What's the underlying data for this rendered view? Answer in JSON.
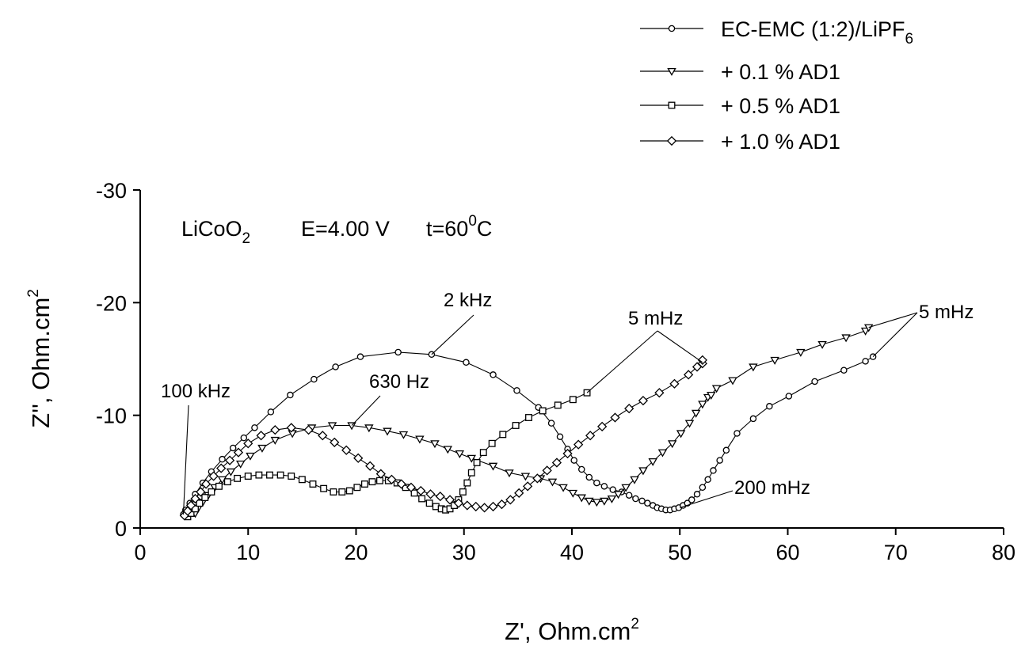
{
  "chart_data": {
    "type": "scatter",
    "title": "",
    "xlabel": {
      "main": "Z', Ohm.cm",
      "sup": "2"
    },
    "ylabel": {
      "main": "Z'', Ohm.cm",
      "sup": "2"
    },
    "xlim": [
      0,
      80
    ],
    "ylim": [
      0,
      -30
    ],
    "x_ticks": [
      "0",
      "10",
      "20",
      "30",
      "40",
      "50",
      "60",
      "70",
      "80"
    ],
    "y_ticks": [
      "0",
      "-10",
      "-20",
      "-30"
    ],
    "grid": false,
    "legend_position": "top-right",
    "conditions": {
      "a": "LiCoO",
      "a_sub": "2",
      "b": "E=4.00 V",
      "c": "t=60",
      "c_sup": "0",
      "c_end": "C"
    },
    "series": [
      {
        "name": "EC-EMC (1:2)/LiPF",
        "name_sub": "6",
        "marker": "circle",
        "x": [
          4.0,
          4.2,
          4.6,
          5.1,
          5.8,
          6.6,
          7.6,
          8.6,
          9.6,
          10.6,
          12.1,
          13.9,
          16.1,
          18.1,
          20.4,
          23.9,
          27.0,
          30.2,
          32.7,
          34.9,
          36.9,
          38.1,
          38.9,
          39.6,
          40.2,
          40.9,
          41.6,
          42.3,
          43.0,
          43.8,
          44.6,
          45.3,
          45.9,
          46.5,
          47.0,
          47.5,
          47.9,
          48.3,
          48.7,
          49.1,
          49.5,
          49.9,
          50.3,
          50.7,
          51.1,
          51.6,
          52.1,
          52.6,
          53.1,
          53.7,
          54.3,
          55.3,
          56.8,
          58.3,
          60.1,
          62.5,
          65.2,
          67.2,
          67.9
        ],
        "y": [
          -1.2,
          -1.6,
          -2.2,
          -3.0,
          -4.0,
          -5.0,
          -6.1,
          -7.1,
          -8.0,
          -8.9,
          -10.3,
          -11.8,
          -13.2,
          -14.3,
          -15.2,
          -15.6,
          -15.4,
          -14.7,
          -13.6,
          -12.2,
          -10.7,
          -9.3,
          -8.1,
          -7.0,
          -6.0,
          -5.2,
          -4.5,
          -4.0,
          -3.7,
          -3.4,
          -3.2,
          -2.9,
          -2.6,
          -2.4,
          -2.2,
          -2.0,
          -1.8,
          -1.7,
          -1.6,
          -1.6,
          -1.7,
          -1.8,
          -2.0,
          -2.2,
          -2.5,
          -3.0,
          -3.6,
          -4.3,
          -5.1,
          -6.0,
          -6.9,
          -8.4,
          -9.7,
          -10.8,
          -11.7,
          -13.0,
          -14.0,
          -14.8,
          -15.2
        ]
      },
      {
        "name": "+ 0.1 % AD1",
        "marker": "triangle-down",
        "x": [
          5.1,
          5.4,
          5.8,
          6.3,
          6.9,
          7.6,
          8.4,
          9.3,
          10.2,
          11.3,
          12.5,
          14.1,
          15.9,
          17.8,
          19.6,
          21.2,
          22.9,
          24.4,
          25.9,
          27.3,
          28.5,
          29.6,
          30.7,
          32.7,
          34.2,
          35.7,
          37.1,
          38.2,
          39.2,
          40.1,
          40.9,
          41.6,
          42.3,
          43.0,
          43.7,
          44.3,
          45.0,
          45.8,
          46.6,
          47.5,
          48.4,
          49.3,
          50.1,
          50.9,
          51.5,
          52.1,
          52.6,
          52.9,
          53.4,
          54.9,
          56.8,
          58.8,
          61.2,
          63.2,
          65.4,
          67.2,
          67.5
        ],
        "y": [
          -1.3,
          -1.8,
          -2.3,
          -2.9,
          -3.6,
          -4.3,
          -5.0,
          -5.7,
          -6.4,
          -7.1,
          -7.8,
          -8.4,
          -8.9,
          -9.1,
          -9.1,
          -8.9,
          -8.6,
          -8.3,
          -7.9,
          -7.5,
          -7.0,
          -6.6,
          -6.2,
          -5.5,
          -4.9,
          -4.6,
          -4.4,
          -4.1,
          -3.6,
          -3.1,
          -2.7,
          -2.4,
          -2.3,
          -2.4,
          -2.6,
          -3.0,
          -3.6,
          -4.3,
          -5.1,
          -5.9,
          -6.7,
          -7.5,
          -8.4,
          -9.3,
          -10.2,
          -11.0,
          -11.6,
          -11.8,
          -12.4,
          -13.1,
          -14.3,
          -14.9,
          -15.6,
          -16.3,
          -16.9,
          -17.5,
          -17.8
        ]
      },
      {
        "name": "+ 0.5 % AD1",
        "marker": "square",
        "x": [
          4.4,
          4.7,
          5.1,
          5.5,
          6.0,
          6.6,
          7.3,
          8.1,
          9.0,
          10.0,
          11.0,
          12.0,
          13.0,
          14.0,
          15.0,
          16.0,
          17.0,
          17.9,
          18.7,
          19.4,
          20.1,
          20.8,
          21.5,
          22.2,
          23.0,
          23.8,
          24.6,
          25.4,
          26.1,
          26.8,
          27.4,
          27.9,
          28.3,
          28.7,
          29.1,
          29.5,
          29.9,
          30.3,
          30.7,
          31.2,
          31.8,
          32.6,
          33.6,
          34.8,
          36.0,
          37.3,
          38.7,
          40.1,
          41.4
        ],
        "y": [
          -1.0,
          -1.3,
          -1.7,
          -2.2,
          -2.7,
          -3.2,
          -3.7,
          -4.1,
          -4.4,
          -4.6,
          -4.7,
          -4.7,
          -4.7,
          -4.6,
          -4.3,
          -3.9,
          -3.5,
          -3.2,
          -3.2,
          -3.3,
          -3.6,
          -3.9,
          -4.1,
          -4.2,
          -4.2,
          -4.0,
          -3.6,
          -3.1,
          -2.6,
          -2.2,
          -1.9,
          -1.7,
          -1.6,
          -1.7,
          -2.0,
          -2.5,
          -3.2,
          -4.0,
          -4.9,
          -5.8,
          -6.7,
          -7.5,
          -8.3,
          -9.1,
          -9.8,
          -10.4,
          -10.9,
          -11.4,
          -12.0
        ]
      },
      {
        "name": "+ 1.0 % AD1",
        "marker": "diamond",
        "x": [
          4.1,
          4.4,
          4.7,
          5.1,
          5.6,
          6.1,
          6.8,
          7.5,
          8.3,
          9.1,
          10.0,
          11.2,
          12.5,
          14.0,
          15.6,
          16.9,
          18.0,
          19.1,
          20.2,
          21.3,
          22.3,
          23.3,
          24.2,
          25.1,
          26.0,
          26.9,
          27.8,
          28.7,
          29.5,
          30.3,
          31.1,
          31.9,
          32.7,
          33.5,
          34.3,
          35.1,
          35.9,
          36.8,
          37.7,
          38.6,
          39.6,
          40.6,
          41.7,
          42.8,
          44.0,
          45.3,
          46.6,
          48.1,
          49.5,
          50.8,
          51.6,
          52.1,
          52.1
        ],
        "y": [
          -1.1,
          -1.5,
          -2.0,
          -2.6,
          -3.2,
          -3.9,
          -4.6,
          -5.3,
          -6.0,
          -6.7,
          -7.5,
          -8.2,
          -8.7,
          -8.9,
          -8.7,
          -8.2,
          -7.6,
          -6.9,
          -6.2,
          -5.5,
          -4.8,
          -4.3,
          -3.9,
          -3.6,
          -3.3,
          -3.0,
          -2.8,
          -2.5,
          -2.2,
          -2.0,
          -1.9,
          -1.8,
          -1.9,
          -2.1,
          -2.5,
          -3.1,
          -3.7,
          -4.4,
          -5.1,
          -5.8,
          -6.6,
          -7.4,
          -8.2,
          -9.0,
          -9.8,
          -10.6,
          -11.3,
          -12.0,
          -12.8,
          -13.6,
          -14.3,
          -14.6,
          -14.9
        ]
      }
    ],
    "annotations": [
      {
        "text": "100 kHz",
        "x": 4.0,
        "y": -1.2
      },
      {
        "text": "2 kHz",
        "x": 27.0,
        "y": -15.4
      },
      {
        "text": "630 Hz",
        "x": 19.6,
        "y": -9.1
      },
      {
        "text": "5 mHz",
        "x": 41.4,
        "y": -12.0
      },
      {
        "text": "5 mHz",
        "x": 67.5,
        "y": -17.8
      },
      {
        "text": "200 mHz",
        "x": 50.0,
        "y": -1.8
      }
    ]
  }
}
